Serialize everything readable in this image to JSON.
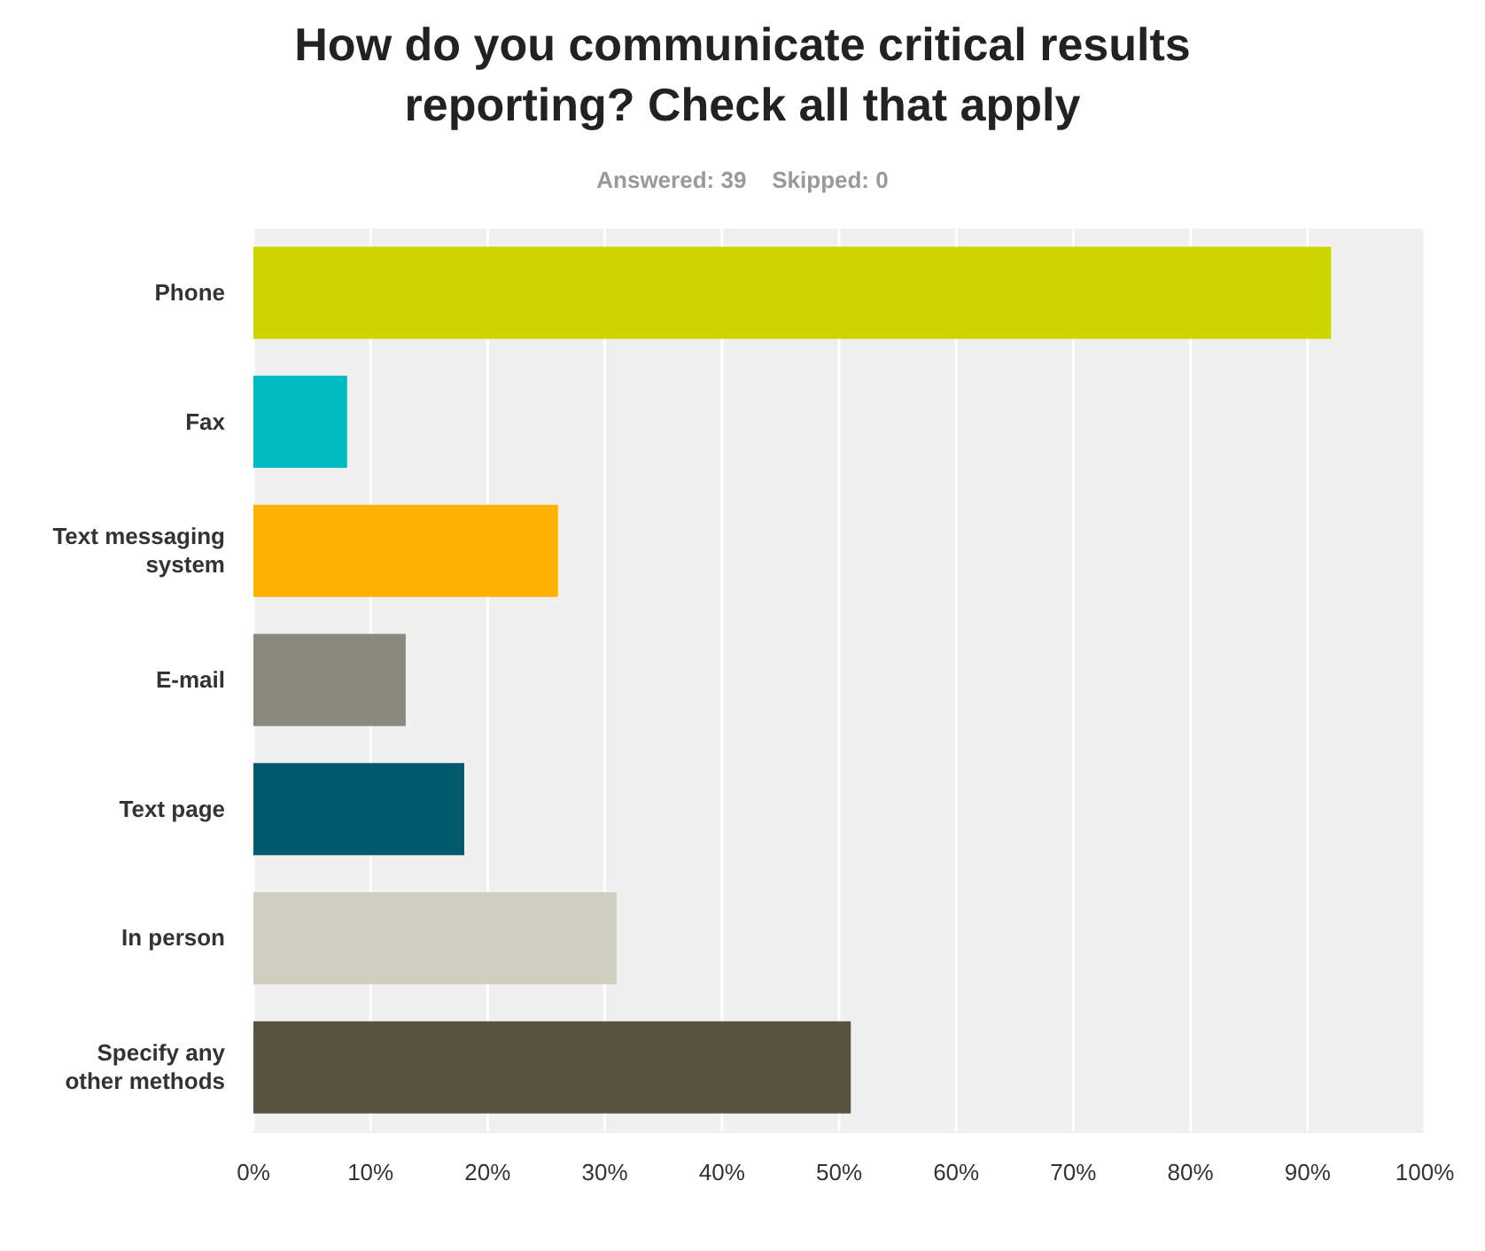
{
  "chart_data": {
    "type": "bar",
    "orientation": "horizontal",
    "title": "How do you communicate critical results reporting? Check all that apply",
    "subtitle": "Answered: 39    Skipped: 0",
    "categories": [
      "Phone",
      "Fax",
      "Text messaging system",
      "E-mail",
      "Text page",
      "In person",
      "Specify any other methods"
    ],
    "values": [
      92,
      8,
      26,
      13,
      18,
      31,
      51
    ],
    "colors": [
      "#cdd400",
      "#00bcc0",
      "#ffb000",
      "#8a8a7a",
      "#005a6e",
      "#cfcfbf",
      "#5a5240"
    ],
    "xlim": [
      0,
      100
    ],
    "xticks": [
      {
        "value": 0,
        "label": "0%"
      },
      {
        "value": 10,
        "label": "10%"
      },
      {
        "value": 20,
        "label": "20%"
      },
      {
        "value": 30,
        "label": "30%"
      },
      {
        "value": 40,
        "label": "40%"
      },
      {
        "value": 50,
        "label": "50%"
      },
      {
        "value": 60,
        "label": "60%"
      },
      {
        "value": 70,
        "label": "70%"
      },
      {
        "value": 80,
        "label": "80%"
      },
      {
        "value": 90,
        "label": "90%"
      },
      {
        "value": 100,
        "label": "100%"
      }
    ],
    "grid": "x"
  }
}
